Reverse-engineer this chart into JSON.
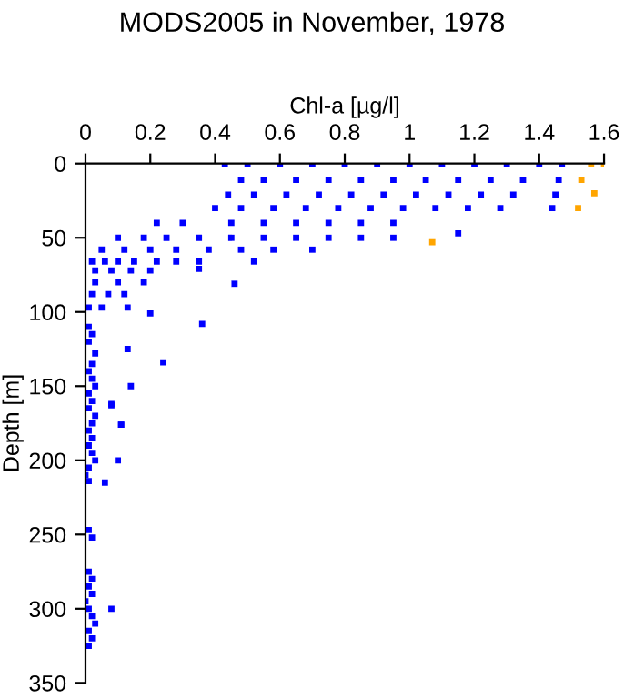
{
  "chart_data": {
    "type": "scatter",
    "title": "MODS2005 in November, 1978",
    "xlabel": "Chl-a [µg/l]",
    "ylabel": "Depth [m]",
    "xlim": [
      0,
      1.6
    ],
    "xticks": [
      0,
      0.2,
      0.4,
      0.6,
      0.8,
      1,
      1.2,
      1.4,
      1.6
    ],
    "ylim": [
      350,
      0
    ],
    "yticks": [
      0,
      50,
      100,
      150,
      200,
      250,
      300,
      350
    ],
    "marker": "square",
    "grid": false,
    "series": [
      {
        "color": "#0000ff",
        "x": [
          0.43,
          0.5,
          0.6,
          0.7,
          0.8,
          0.9,
          1.0,
          1.1,
          1.2,
          1.3,
          1.4,
          1.47,
          0.48,
          0.55,
          0.65,
          0.75,
          0.85,
          0.95,
          1.05,
          1.15,
          1.25,
          1.35,
          1.46,
          0.44,
          0.52,
          0.62,
          0.72,
          0.82,
          0.92,
          1.02,
          1.12,
          1.22,
          1.32,
          1.45,
          0.4,
          0.48,
          0.58,
          0.68,
          0.78,
          0.88,
          0.98,
          1.08,
          1.18,
          1.28,
          1.44,
          0.22,
          0.3,
          0.45,
          0.55,
          0.65,
          0.75,
          0.85,
          0.95,
          1.15,
          0.1,
          0.18,
          0.25,
          0.35,
          0.45,
          0.55,
          0.65,
          0.75,
          0.85,
          0.95,
          0.05,
          0.12,
          0.2,
          0.28,
          0.38,
          0.48,
          0.58,
          0.7,
          0.02,
          0.06,
          0.1,
          0.15,
          0.22,
          0.28,
          0.35,
          0.52,
          0.03,
          0.08,
          0.14,
          0.2,
          0.35,
          0.03,
          0.1,
          0.18,
          0.46,
          0.02,
          0.07,
          0.12,
          0.01,
          0.05,
          0.13,
          0.2,
          0.36,
          0.13,
          0.24,
          0.14,
          0.08,
          0.11,
          0.08,
          0.11,
          0.1,
          0.06,
          0.08,
          0.01,
          0.02,
          0.01,
          0.03,
          0.02,
          0.01,
          0.02,
          0.03,
          0.01,
          0.02,
          0.01,
          0.03,
          0.02,
          0.01,
          0.02,
          0.01,
          0.02,
          0.03,
          0.01,
          0.0,
          0.01,
          0.01,
          0.02,
          0.01,
          0.02,
          0.01,
          0.02,
          0.0,
          0.01,
          0.02,
          0.03,
          0.01,
          0.02,
          0.01
        ],
        "values": [
          0,
          0,
          0,
          0,
          0,
          0,
          0,
          0,
          0,
          0,
          0,
          0,
          11,
          11,
          11,
          11,
          11,
          11,
          11,
          11,
          11,
          11,
          11,
          21,
          21,
          21,
          21,
          21,
          21,
          21,
          21,
          21,
          21,
          21,
          30,
          30,
          30,
          30,
          30,
          30,
          30,
          30,
          30,
          30,
          30,
          40,
          40,
          40,
          40,
          40,
          40,
          40,
          40,
          47,
          50,
          50,
          50,
          50,
          50,
          50,
          50,
          50,
          50,
          50,
          58,
          58,
          58,
          58,
          58,
          58,
          58,
          58,
          66,
          66,
          66,
          66,
          66,
          66,
          66,
          66,
          72,
          72,
          72,
          72,
          71,
          80,
          80,
          80,
          81,
          88,
          88,
          88,
          97,
          97,
          97,
          101,
          108,
          125,
          134,
          150,
          162,
          176,
          163,
          176,
          200,
          215,
          300,
          110,
          115,
          120,
          128,
          135,
          140,
          145,
          150,
          155,
          160,
          165,
          170,
          175,
          180,
          185,
          190,
          195,
          200,
          205,
          210,
          214,
          247,
          252,
          275,
          280,
          285,
          290,
          295,
          300,
          305,
          310,
          315,
          320,
          325
        ]
      },
      {
        "color": "#ffa500",
        "x": [
          1.56,
          1.6,
          1.53,
          1.57,
          1.52,
          1.07
        ],
        "values": [
          0,
          0,
          11,
          20,
          30,
          53
        ]
      }
    ]
  }
}
